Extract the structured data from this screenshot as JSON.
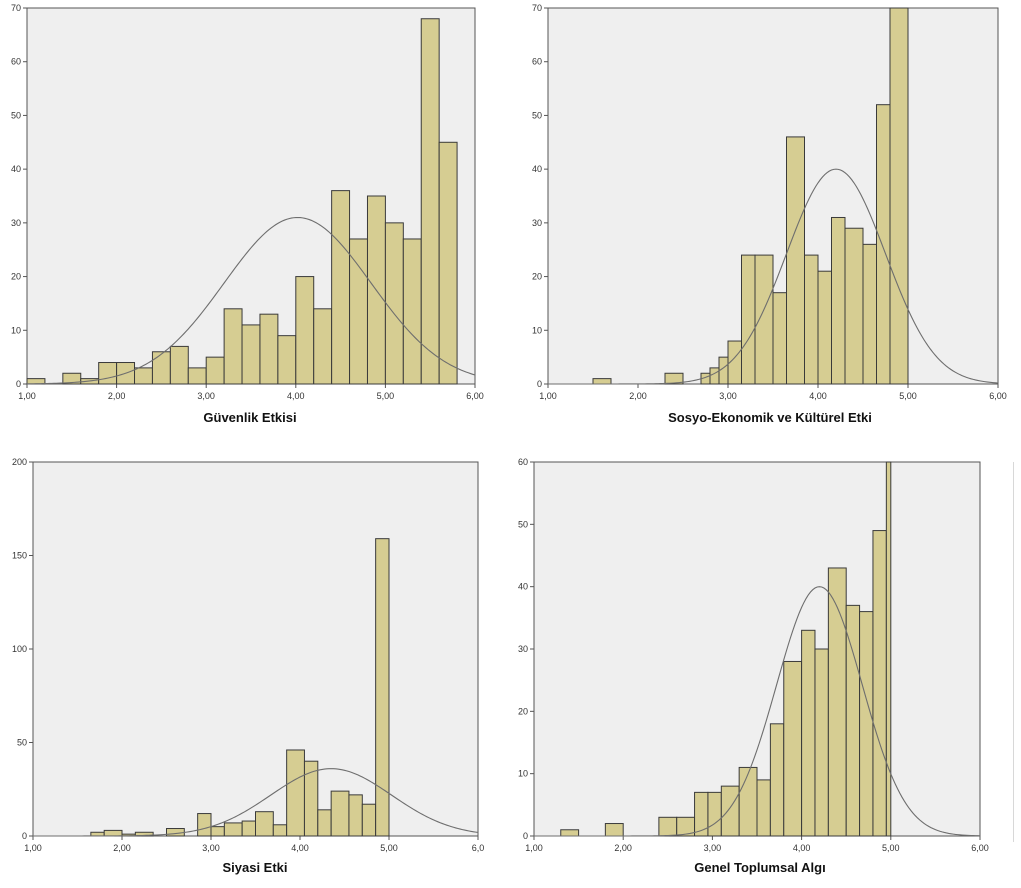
{
  "chart_data": [
    {
      "type": "bar",
      "id": "guvenlik",
      "xlabel": "Güvenlik Etkisi",
      "xlim": [
        1,
        6
      ],
      "ylim": [
        0,
        70
      ],
      "xticks": [
        "1,00",
        "2,00",
        "3,00",
        "4,00",
        "5,00",
        "6,00"
      ],
      "yticks": [
        "0",
        "10",
        "20",
        "30",
        "40",
        "50",
        "60",
        "70"
      ],
      "bin_width": 0.2,
      "bins": [
        {
          "x0": 1.0,
          "x1": 1.2,
          "count": 1
        },
        {
          "x0": 1.4,
          "x1": 1.6,
          "count": 2
        },
        {
          "x0": 1.6,
          "x1": 1.8,
          "count": 1
        },
        {
          "x0": 1.8,
          "x1": 2.0,
          "count": 4
        },
        {
          "x0": 2.0,
          "x1": 2.2,
          "count": 4
        },
        {
          "x0": 2.2,
          "x1": 2.4,
          "count": 3
        },
        {
          "x0": 2.4,
          "x1": 2.6,
          "count": 6
        },
        {
          "x0": 2.6,
          "x1": 2.8,
          "count": 7
        },
        {
          "x0": 2.8,
          "x1": 3.0,
          "count": 3
        },
        {
          "x0": 3.0,
          "x1": 3.2,
          "count": 5
        },
        {
          "x0": 3.2,
          "x1": 3.4,
          "count": 14
        },
        {
          "x0": 3.4,
          "x1": 3.6,
          "count": 11
        },
        {
          "x0": 3.6,
          "x1": 3.8,
          "count": 13
        },
        {
          "x0": 3.8,
          "x1": 4.0,
          "count": 9
        },
        {
          "x0": 4.0,
          "x1": 4.2,
          "count": 20
        },
        {
          "x0": 4.2,
          "x1": 4.4,
          "count": 14
        },
        {
          "x0": 4.4,
          "x1": 4.6,
          "count": 36
        },
        {
          "x0": 4.6,
          "x1": 4.8,
          "count": 27
        },
        {
          "x0": 4.8,
          "x1": 5.0,
          "count": 35
        },
        {
          "x0": 5.0,
          "x1": 5.2,
          "count": 30
        },
        {
          "x0": 5.2,
          "x1": 5.4,
          "count": 27
        },
        {
          "x0": 5.4,
          "x1": 5.6,
          "count": 68
        },
        {
          "x0": 5.6,
          "x1": 5.8,
          "count": 45
        }
      ],
      "normal_curve": {
        "mean": 4.02,
        "sd": 0.82,
        "peak": 31
      }
    },
    {
      "type": "bar",
      "id": "sosyo",
      "xlabel": "Sosyo-Ekonomik ve Kültürel Etki",
      "xlim": [
        1,
        6
      ],
      "ylim": [
        0,
        70
      ],
      "xticks": [
        "1,00",
        "2,00",
        "3,00",
        "4,00",
        "5,00",
        "6,00"
      ],
      "yticks": [
        "0",
        "10",
        "20",
        "30",
        "40",
        "50",
        "60",
        "70"
      ],
      "bin_width": 0.2,
      "bins": [
        {
          "x0": 1.5,
          "x1": 1.7,
          "count": 1
        },
        {
          "x0": 2.3,
          "x1": 2.5,
          "count": 2
        },
        {
          "x0": 2.5,
          "x1": 2.7,
          "count": 0
        },
        {
          "x0": 2.7,
          "x1": 2.8,
          "count": 2
        },
        {
          "x0": 2.8,
          "x1": 2.9,
          "count": 3
        },
        {
          "x0": 2.9,
          "x1": 3.0,
          "count": 5
        },
        {
          "x0": 3.0,
          "x1": 3.15,
          "count": 8
        },
        {
          "x0": 3.15,
          "x1": 3.3,
          "count": 24
        },
        {
          "x0": 3.3,
          "x1": 3.5,
          "count": 24
        },
        {
          "x0": 3.5,
          "x1": 3.65,
          "count": 17
        },
        {
          "x0": 3.65,
          "x1": 3.85,
          "count": 46
        },
        {
          "x0": 3.85,
          "x1": 4.0,
          "count": 24
        },
        {
          "x0": 4.0,
          "x1": 4.15,
          "count": 21
        },
        {
          "x0": 4.15,
          "x1": 4.3,
          "count": 31
        },
        {
          "x0": 4.3,
          "x1": 4.5,
          "count": 29
        },
        {
          "x0": 4.5,
          "x1": 4.65,
          "count": 26
        },
        {
          "x0": 4.65,
          "x1": 4.8,
          "count": 52
        },
        {
          "x0": 4.8,
          "x1": 5.0,
          "count": 70
        }
      ],
      "normal_curve": {
        "mean": 4.2,
        "sd": 0.55,
        "peak": 40
      }
    },
    {
      "type": "bar",
      "id": "siyasi",
      "xlabel": "Siyasi Etki",
      "xlim": [
        1,
        6
      ],
      "ylim": [
        0,
        200
      ],
      "xticks": [
        "1,00",
        "2,00",
        "3,00",
        "4,00",
        "5,00",
        "6,0"
      ],
      "yticks": [
        "0",
        "50",
        "100",
        "150",
        "200"
      ],
      "bin_width": 0.2,
      "bins": [
        {
          "x0": 1.65,
          "x1": 1.8,
          "count": 2
        },
        {
          "x0": 1.8,
          "x1": 2.0,
          "count": 3
        },
        {
          "x0": 2.0,
          "x1": 2.15,
          "count": 1
        },
        {
          "x0": 2.15,
          "x1": 2.35,
          "count": 2
        },
        {
          "x0": 2.5,
          "x1": 2.7,
          "count": 4
        },
        {
          "x0": 2.85,
          "x1": 3.0,
          "count": 12
        },
        {
          "x0": 3.0,
          "x1": 3.15,
          "count": 5
        },
        {
          "x0": 3.15,
          "x1": 3.35,
          "count": 7
        },
        {
          "x0": 3.35,
          "x1": 3.5,
          "count": 8
        },
        {
          "x0": 3.5,
          "x1": 3.7,
          "count": 13
        },
        {
          "x0": 3.7,
          "x1": 3.85,
          "count": 6
        },
        {
          "x0": 3.85,
          "x1": 4.05,
          "count": 46
        },
        {
          "x0": 4.05,
          "x1": 4.2,
          "count": 40
        },
        {
          "x0": 4.2,
          "x1": 4.35,
          "count": 14
        },
        {
          "x0": 4.35,
          "x1": 4.55,
          "count": 24
        },
        {
          "x0": 4.55,
          "x1": 4.7,
          "count": 22
        },
        {
          "x0": 4.7,
          "x1": 4.85,
          "count": 17
        },
        {
          "x0": 4.85,
          "x1": 5.0,
          "count": 159
        }
      ],
      "normal_curve": {
        "mean": 4.35,
        "sd": 0.68,
        "peak": 36
      }
    },
    {
      "type": "bar",
      "id": "genel",
      "xlabel": "Genel Toplumsal Algı",
      "xlim": [
        1,
        6
      ],
      "ylim": [
        0,
        60
      ],
      "xticks": [
        "1,00",
        "2,00",
        "3,00",
        "4,00",
        "5,00",
        "6,00"
      ],
      "yticks": [
        "0",
        "10",
        "20",
        "30",
        "40",
        "50",
        "60"
      ],
      "bin_width": 0.2,
      "bins": [
        {
          "x0": 1.3,
          "x1": 1.5,
          "count": 1
        },
        {
          "x0": 1.8,
          "x1": 2.0,
          "count": 2
        },
        {
          "x0": 2.4,
          "x1": 2.6,
          "count": 3
        },
        {
          "x0": 2.6,
          "x1": 2.8,
          "count": 3
        },
        {
          "x0": 2.8,
          "x1": 2.95,
          "count": 7
        },
        {
          "x0": 2.95,
          "x1": 3.1,
          "count": 7
        },
        {
          "x0": 3.1,
          "x1": 3.3,
          "count": 8
        },
        {
          "x0": 3.3,
          "x1": 3.5,
          "count": 11
        },
        {
          "x0": 3.5,
          "x1": 3.65,
          "count": 9
        },
        {
          "x0": 3.65,
          "x1": 3.8,
          "count": 18
        },
        {
          "x0": 3.8,
          "x1": 4.0,
          "count": 28
        },
        {
          "x0": 4.0,
          "x1": 4.15,
          "count": 33
        },
        {
          "x0": 4.15,
          "x1": 4.3,
          "count": 30
        },
        {
          "x0": 4.3,
          "x1": 4.5,
          "count": 43
        },
        {
          "x0": 4.5,
          "x1": 4.65,
          "count": 37
        },
        {
          "x0": 4.65,
          "x1": 4.8,
          "count": 36
        },
        {
          "x0": 4.8,
          "x1": 4.95,
          "count": 49
        },
        {
          "x0": 4.95,
          "x1": 5.0,
          "count": 60
        }
      ],
      "normal_curve": {
        "mean": 4.2,
        "sd": 0.48,
        "peak": 40
      }
    }
  ],
  "colors": {
    "bar_fill": "#d6cd92",
    "bar_stroke": "#3a3a3a",
    "plot_background": "#efefef",
    "curve": "#6e6e6e"
  }
}
